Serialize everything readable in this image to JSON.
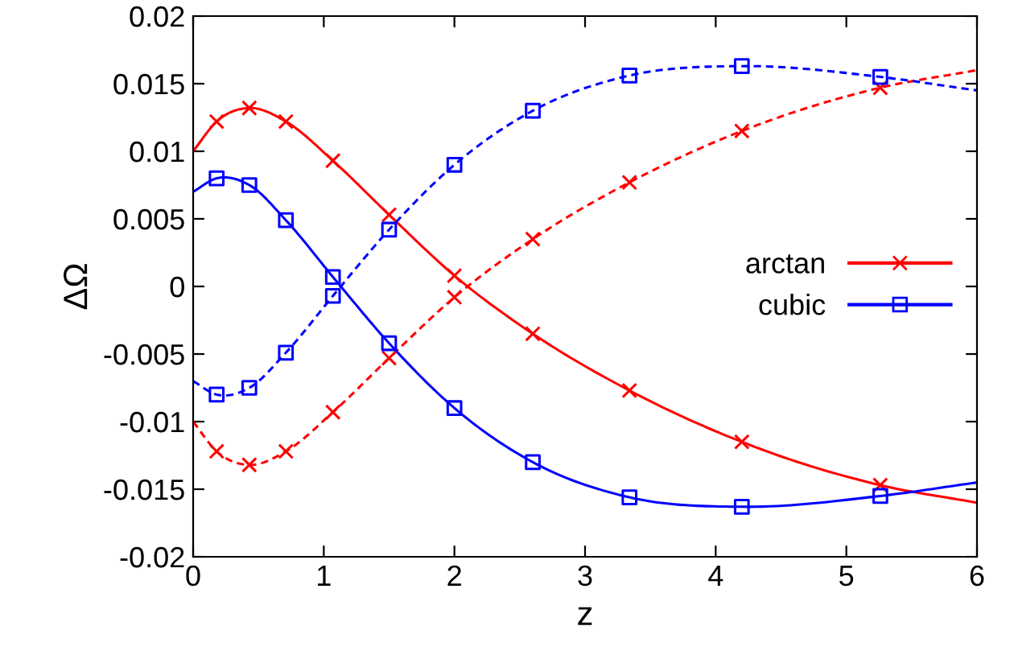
{
  "chart_data": {
    "type": "line",
    "xlabel": "z",
    "ylabel": "ΔΩ",
    "xlim": [
      0,
      6
    ],
    "ylim": [
      -0.02,
      0.02
    ],
    "xticks": [
      0,
      1,
      2,
      3,
      4,
      5,
      6
    ],
    "yticks": [
      -0.02,
      -0.015,
      -0.01,
      -0.005,
      0,
      0.005,
      0.01,
      0.015,
      0.02
    ],
    "grid": false,
    "legend": "right",
    "series": [
      {
        "color": "#ff0000",
        "line_style": "solid",
        "x": [
          0,
          0.18,
          0.43,
          0.71,
          1.07,
          1.5,
          2.0,
          2.6,
          3.34,
          4.2,
          5.26,
          6
        ],
        "values": [
          0.01,
          0.0122,
          0.0132,
          0.0122,
          0.0093,
          0.0053,
          0.0008,
          -0.0035,
          -0.0077,
          -0.0115,
          -0.0147,
          -0.016
        ]
      },
      {
        "color": "#ff0000",
        "line_style": "dashed",
        "x": [
          0,
          0.18,
          0.43,
          0.71,
          1.07,
          1.5,
          2.0,
          2.6,
          3.34,
          4.2,
          5.26,
          6
        ],
        "values": [
          -0.01,
          -0.0122,
          -0.0132,
          -0.0122,
          -0.0093,
          -0.0053,
          -0.0008,
          0.0035,
          0.0077,
          0.0115,
          0.0147,
          0.016
        ]
      },
      {
        "color": "#0000ff",
        "line_style": "solid",
        "x": [
          0,
          0.18,
          0.43,
          0.71,
          1.07,
          1.5,
          2.0,
          2.6,
          3.34,
          4.2,
          5.26,
          6
        ],
        "values": [
          0.007,
          0.008,
          0.0075,
          0.0049,
          0.0007,
          -0.0042,
          -0.009,
          -0.013,
          -0.0156,
          -0.0163,
          -0.0155,
          -0.0145
        ]
      },
      {
        "color": "#0000ff",
        "line_style": "dashed",
        "x": [
          0,
          0.18,
          0.43,
          0.71,
          1.07,
          1.5,
          2.0,
          2.6,
          3.34,
          4.2,
          5.26,
          6
        ],
        "values": [
          -0.007,
          -0.008,
          -0.0075,
          -0.0049,
          -0.0007,
          0.0042,
          0.009,
          0.013,
          0.0156,
          0.0163,
          0.0155,
          0.0145
        ]
      },
      {
        "type": "scatter",
        "name": "arctan",
        "color": "#ff0000",
        "marker": "cross",
        "line_style": "solid",
        "x": [
          0.18,
          0.43,
          0.71,
          1.07,
          1.5,
          2.0,
          2.6,
          3.34,
          4.2,
          5.26
        ],
        "values": [
          0.0122,
          0.0132,
          0.0122,
          0.0093,
          0.0053,
          0.0008,
          -0.0035,
          -0.0077,
          -0.0115,
          -0.0147
        ]
      },
      {
        "type": "scatter",
        "color": "#ff0000",
        "marker": "cross",
        "x": [
          0.18,
          0.43,
          0.71,
          1.07,
          1.5,
          2.0,
          2.6,
          3.34,
          4.2,
          5.26
        ],
        "values": [
          -0.0122,
          -0.0132,
          -0.0122,
          -0.0093,
          -0.0053,
          -0.0008,
          0.0035,
          0.0077,
          0.0115,
          0.0147
        ]
      },
      {
        "type": "scatter",
        "name": "cubic",
        "color": "#0000ff",
        "marker": "square",
        "line_style": "solid",
        "x": [
          0.18,
          0.43,
          0.71,
          1.07,
          1.5,
          2.0,
          2.6,
          3.34,
          4.2,
          5.26
        ],
        "values": [
          0.008,
          0.0075,
          0.0049,
          0.0007,
          -0.0042,
          -0.009,
          -0.013,
          -0.0156,
          -0.0163,
          -0.0155
        ]
      },
      {
        "type": "scatter",
        "color": "#0000ff",
        "marker": "square",
        "x": [
          0.18,
          0.43,
          0.71,
          1.07,
          1.5,
          2.0,
          2.6,
          3.34,
          4.2,
          5.26
        ],
        "values": [
          -0.008,
          -0.0075,
          -0.0049,
          -0.0007,
          0.0042,
          0.009,
          0.013,
          0.0156,
          0.0163,
          0.0155
        ]
      }
    ]
  }
}
